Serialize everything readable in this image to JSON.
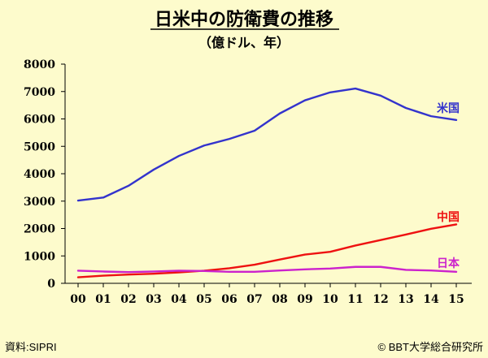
{
  "chart_data": {
    "type": "line",
    "title": "日米中の防衛費の推移",
    "subtitle": "（億ドル、年）",
    "xlabel": "",
    "ylabel": "",
    "categories": [
      "00",
      "01",
      "02",
      "03",
      "04",
      "05",
      "06",
      "07",
      "08",
      "09",
      "10",
      "11",
      "12",
      "13",
      "14",
      "15"
    ],
    "ylim": [
      0,
      8000
    ],
    "yticks": [
      0,
      1000,
      2000,
      3000,
      4000,
      5000,
      6000,
      7000,
      8000
    ],
    "grid": false,
    "series": [
      {
        "name": "米国",
        "color": "#3333cc",
        "values": [
          3020,
          3130,
          3560,
          4150,
          4650,
          5030,
          5270,
          5570,
          6200,
          6680,
          6970,
          7110,
          6850,
          6400,
          6100,
          5960
        ]
      },
      {
        "name": "中国",
        "color": "#ee1111",
        "values": [
          220,
          280,
          320,
          350,
          400,
          460,
          550,
          680,
          870,
          1050,
          1150,
          1380,
          1580,
          1780,
          1990,
          2150
        ]
      },
      {
        "name": "日本",
        "color": "#cc22cc",
        "values": [
          460,
          430,
          410,
          430,
          460,
          450,
          420,
          420,
          470,
          510,
          540,
          600,
          600,
          490,
          470,
          420
        ]
      }
    ]
  },
  "footer": {
    "source": "資料:SIPRI",
    "credit": "© BBT大学総合研究所"
  }
}
